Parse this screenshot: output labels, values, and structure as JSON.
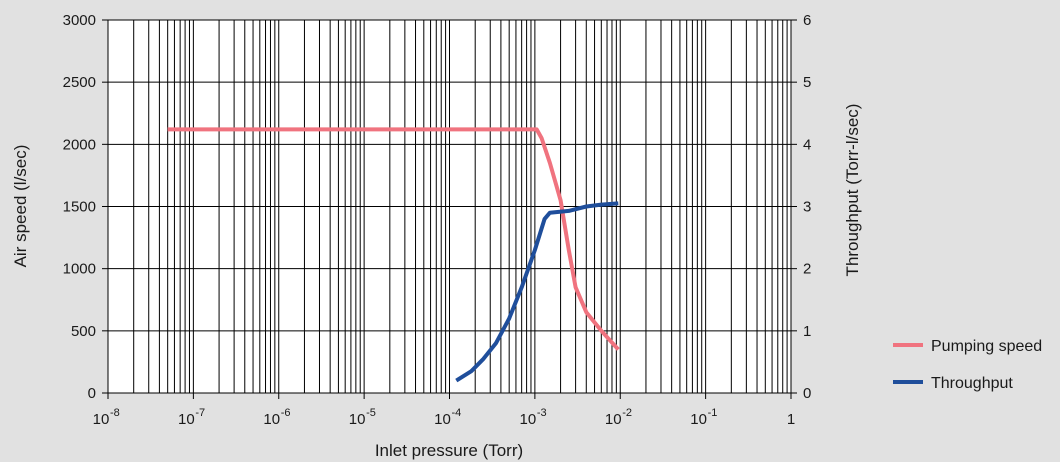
{
  "chart_data": {
    "type": "line",
    "xlabel": "Inlet pressure (Torr)",
    "ylabel": "Air speed (l/sec)",
    "y2label": "Throughput (Torr-l/sec)",
    "x_scale": "log",
    "xlim": [
      1e-08,
      1
    ],
    "ylim": [
      0,
      3000
    ],
    "y2lim": [
      0,
      6
    ],
    "grid": true,
    "legend_position": "right",
    "x_ticks": [
      {
        "value": 1e-08,
        "base": "10",
        "exp": "-8"
      },
      {
        "value": 1e-07,
        "base": "10",
        "exp": "-7"
      },
      {
        "value": 1e-06,
        "base": "10",
        "exp": "-6"
      },
      {
        "value": 1e-05,
        "base": "10",
        "exp": "-5"
      },
      {
        "value": 0.0001,
        "base": "10",
        "exp": "-4"
      },
      {
        "value": 0.001,
        "base": "10",
        "exp": "-3"
      },
      {
        "value": 0.01,
        "base": "10",
        "exp": "-2"
      },
      {
        "value": 0.1,
        "base": "10",
        "exp": "-1"
      },
      {
        "value": 1,
        "base": "1",
        "exp": ""
      }
    ],
    "y_ticks": [
      "0",
      "500",
      "1000",
      "1500",
      "2000",
      "2500",
      "3000"
    ],
    "y2_ticks": [
      "0",
      "1",
      "2",
      "3",
      "4",
      "5",
      "6"
    ],
    "series": [
      {
        "name": "Pumping speed",
        "axis": "left",
        "color": "#f0737f",
        "points": [
          [
            5e-08,
            2120
          ],
          [
            1e-07,
            2120
          ],
          [
            1e-06,
            2120
          ],
          [
            1e-05,
            2120
          ],
          [
            0.0001,
            2120
          ],
          [
            0.0008,
            2120
          ],
          [
            0.00105,
            2120
          ],
          [
            0.0012,
            2050
          ],
          [
            0.0015,
            1850
          ],
          [
            0.002,
            1550
          ],
          [
            0.0025,
            1150
          ],
          [
            0.003,
            850
          ],
          [
            0.004,
            650
          ],
          [
            0.006,
            500
          ],
          [
            0.0095,
            350
          ]
        ]
      },
      {
        "name": "Throughput",
        "axis": "right",
        "color": "#1f4e9b",
        "points": [
          [
            0.00012,
            0.2
          ],
          [
            0.00018,
            0.35
          ],
          [
            0.00025,
            0.55
          ],
          [
            0.00035,
            0.8
          ],
          [
            0.0005,
            1.2
          ],
          [
            0.0007,
            1.7
          ],
          [
            0.001,
            2.3
          ],
          [
            0.0013,
            2.8
          ],
          [
            0.0015,
            2.9
          ],
          [
            0.0025,
            2.93
          ],
          [
            0.004,
            3.0
          ],
          [
            0.006,
            3.03
          ],
          [
            0.0095,
            3.05
          ]
        ]
      }
    ]
  }
}
